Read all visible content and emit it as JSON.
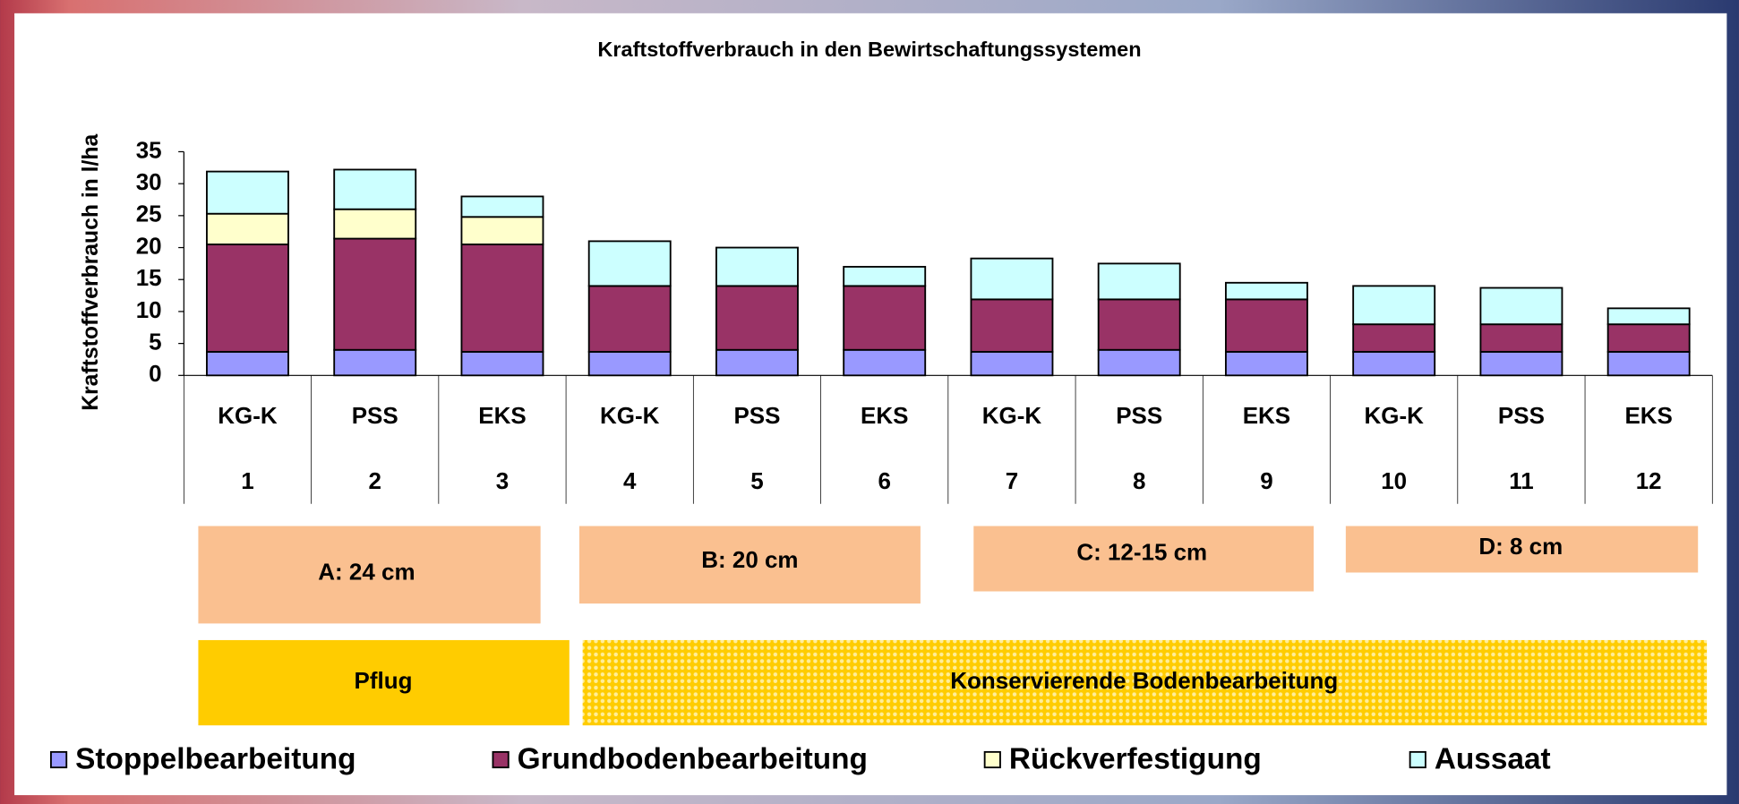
{
  "chart_data": {
    "type": "stacked_bar",
    "title": "Kraftstoffverbrauch in den Bewirtschaftungssystemen",
    "y_label": "Kraftstoffverbrauch in l/ha",
    "categories": [
      "KG-K",
      "PSS",
      "EKS",
      "KG-K",
      "PSS",
      "EKS",
      "KG-K",
      "PSS",
      "EKS",
      "KG-K",
      "PSS",
      "EKS"
    ],
    "category_numbers": [
      1,
      2,
      3,
      4,
      5,
      6,
      7,
      8,
      9,
      10,
      11,
      12
    ],
    "series": [
      {
        "name": "Stoppelbearbeitung",
        "color": "#9999ff",
        "values": [
          3.7,
          4,
          3.7,
          3.7,
          4,
          4,
          3.7,
          4,
          3.7,
          3.7,
          3.7,
          3.7
        ]
      },
      {
        "name": "Grundbodenbearbeitung",
        "color": "#993366",
        "values": [
          16.8,
          17.4,
          16.8,
          10.3,
          10,
          10,
          8.2,
          7.9,
          8.2,
          4.3,
          4.3,
          4.3
        ]
      },
      {
        "name": "Rückverfestigung",
        "color": "#ffffcc",
        "values": [
          4.8,
          4.6,
          4.3,
          0,
          0,
          0,
          0,
          0,
          0,
          0,
          0,
          0
        ]
      },
      {
        "name": "Aussaat",
        "color": "#ccffff",
        "values": [
          6.6,
          6.2,
          3.2,
          7,
          6,
          3,
          6.4,
          5.6,
          2.6,
          6,
          5.7,
          2.5
        ]
      }
    ],
    "ylim": [
      0,
      35
    ],
    "yticks": [
      0,
      5,
      10,
      15,
      20,
      25,
      30,
      35
    ],
    "depth_groups": [
      "A: 24 cm",
      "B: 20 cm",
      "C: 12-15 cm",
      "D: 8 cm"
    ],
    "tillage_groups": [
      "Pflug",
      "Konservierende Bodenbearbeitung"
    ]
  }
}
